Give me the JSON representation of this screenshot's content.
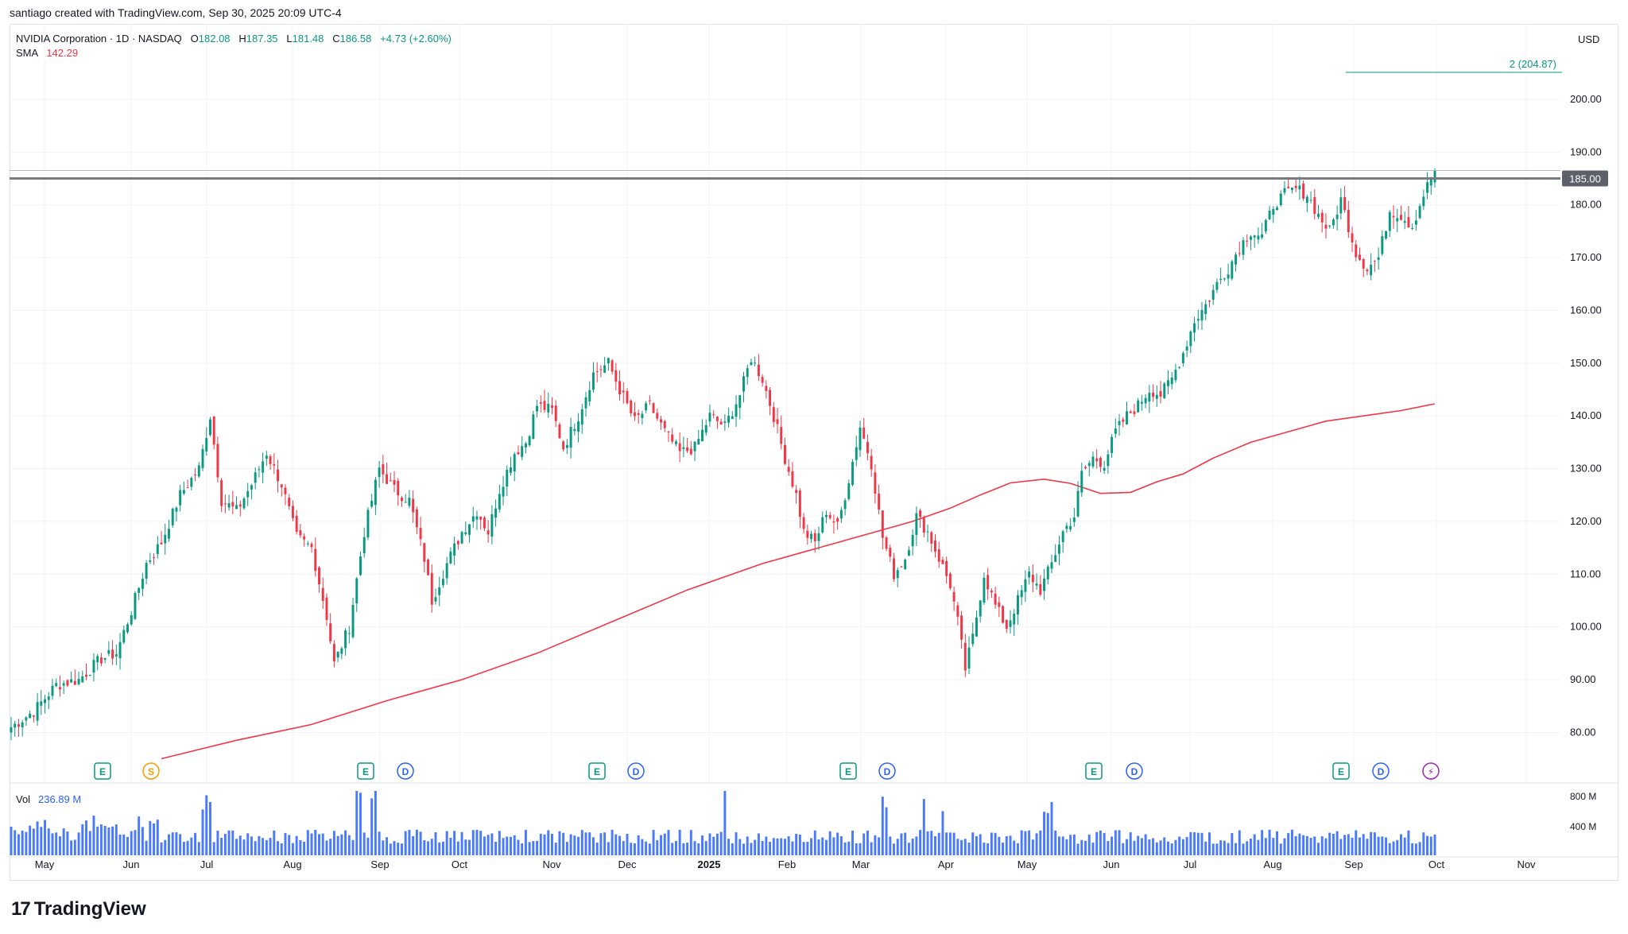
{
  "header": {
    "credit": "santiago created with TradingView.com, Sep 30, 2025 20:09 UTC-4",
    "symbol": "NVIDIA Corporation · 1D · NASDAQ",
    "ohlc": {
      "o_label": "O",
      "o": "182.08",
      "h_label": "H",
      "h": "187.35",
      "l_label": "L",
      "l": "181.48",
      "c_label": "C",
      "c": "186.58",
      "change": "+4.73 (+2.60%)"
    },
    "sma_label": "SMA",
    "sma_value": "142.29",
    "currency": "USD"
  },
  "brand": {
    "name": "TradingView",
    "logo_glyph": "17"
  },
  "colors": {
    "up": "#089981",
    "down": "#f23645",
    "sma": "#f23645",
    "volume": "#2962ff",
    "hline": "#787b86",
    "price_tag_bg": "#5d606b"
  },
  "chart_data": {
    "type": "candlestick",
    "y_axis": {
      "ticks": [
        "80.00",
        "90.00",
        "100.00",
        "110.00",
        "120.00",
        "130.00",
        "140.00",
        "150.00",
        "160.00",
        "170.00",
        "180.00",
        "190.00",
        "200.00"
      ],
      "range": [
        75,
        212
      ]
    },
    "x_axis": {
      "labels": [
        "May",
        "Jun",
        "Jul",
        "Aug",
        "Sep",
        "Oct",
        "Nov",
        "Dec",
        "2025",
        "Feb",
        "Mar",
        "Apr",
        "May",
        "Jun",
        "Jul",
        "Aug",
        "Sep",
        "Oct",
        "Nov"
      ]
    },
    "horizontal_line": {
      "value": 185.0,
      "label": "185.00"
    },
    "target_line": {
      "value": 204.87,
      "label": "2 (204.87)"
    },
    "events": [
      "E",
      "S",
      "E",
      "D",
      "E",
      "D",
      "E",
      "D",
      "E",
      "D",
      "E",
      "D",
      "⚡"
    ],
    "volume": {
      "ticks": [
        "800 M",
        "400 M"
      ],
      "label": "Vol",
      "last": "236.89 M"
    },
    "anchors": [
      [
        0,
        81
      ],
      [
        6,
        84
      ],
      [
        12,
        89
      ],
      [
        18,
        90
      ],
      [
        24,
        94
      ],
      [
        28,
        95
      ],
      [
        32,
        103
      ],
      [
        36,
        112
      ],
      [
        40,
        116
      ],
      [
        45,
        125
      ],
      [
        50,
        130
      ],
      [
        53,
        140
      ],
      [
        56,
        124
      ],
      [
        60,
        122
      ],
      [
        64,
        127
      ],
      [
        68,
        133
      ],
      [
        72,
        127
      ],
      [
        76,
        117
      ],
      [
        80,
        115
      ],
      [
        84,
        102
      ],
      [
        86,
        93
      ],
      [
        90,
        100
      ],
      [
        94,
        118
      ],
      [
        98,
        130
      ],
      [
        102,
        126
      ],
      [
        106,
        124
      ],
      [
        110,
        113
      ],
      [
        112,
        105
      ],
      [
        116,
        112
      ],
      [
        120,
        118
      ],
      [
        124,
        122
      ],
      [
        127,
        118
      ],
      [
        130,
        126
      ],
      [
        134,
        133
      ],
      [
        137,
        135
      ],
      [
        140,
        142
      ],
      [
        144,
        141
      ],
      [
        147,
        134
      ],
      [
        151,
        140
      ],
      [
        155,
        148
      ],
      [
        159,
        150
      ],
      [
        162,
        145
      ],
      [
        166,
        139
      ],
      [
        170,
        142
      ],
      [
        174,
        137
      ],
      [
        178,
        133
      ],
      [
        182,
        134
      ],
      [
        186,
        140
      ],
      [
        190,
        138
      ],
      [
        194,
        144
      ],
      [
        197,
        151
      ],
      [
        200,
        147
      ],
      [
        203,
        140
      ],
      [
        206,
        132
      ],
      [
        209,
        125
      ],
      [
        211,
        118
      ],
      [
        214,
        116
      ],
      [
        217,
        122
      ],
      [
        220,
        119
      ],
      [
        223,
        128
      ],
      [
        226,
        138
      ],
      [
        229,
        131
      ],
      [
        232,
        117
      ],
      [
        235,
        110
      ],
      [
        238,
        113
      ],
      [
        241,
        121
      ],
      [
        244,
        118
      ],
      [
        247,
        113
      ],
      [
        250,
        108
      ],
      [
        252,
        101
      ],
      [
        254,
        92
      ],
      [
        256,
        98
      ],
      [
        259,
        110
      ],
      [
        262,
        104
      ],
      [
        265,
        100
      ],
      [
        268,
        105
      ],
      [
        271,
        110
      ],
      [
        274,
        107
      ],
      [
        277,
        112
      ],
      [
        280,
        118
      ],
      [
        283,
        121
      ],
      [
        285,
        129
      ],
      [
        288,
        132
      ],
      [
        291,
        131
      ],
      [
        294,
        137
      ],
      [
        297,
        140
      ],
      [
        300,
        142
      ],
      [
        303,
        145
      ],
      [
        306,
        144
      ],
      [
        309,
        147
      ],
      [
        312,
        152
      ],
      [
        315,
        158
      ],
      [
        318,
        161
      ],
      [
        321,
        165
      ],
      [
        324,
        168
      ],
      [
        327,
        172
      ],
      [
        330,
        175
      ],
      [
        333,
        174
      ],
      [
        336,
        180
      ],
      [
        339,
        182
      ],
      [
        342,
        183
      ],
      [
        345,
        182
      ],
      [
        348,
        178
      ],
      [
        351,
        175
      ],
      [
        354,
        181
      ],
      [
        356,
        176
      ],
      [
        358,
        171
      ],
      [
        361,
        168
      ],
      [
        364,
        170
      ],
      [
        367,
        179
      ],
      [
        370,
        178
      ],
      [
        373,
        176
      ],
      [
        376,
        182
      ],
      [
        379,
        186.58
      ]
    ],
    "sma_points": [
      [
        40,
        75
      ],
      [
        60,
        78.5
      ],
      [
        80,
        81.5
      ],
      [
        100,
        86
      ],
      [
        120,
        90
      ],
      [
        140,
        95
      ],
      [
        160,
        101
      ],
      [
        180,
        107
      ],
      [
        200,
        112
      ],
      [
        220,
        116
      ],
      [
        240,
        120
      ],
      [
        250,
        122.5
      ],
      [
        258,
        125
      ],
      [
        266,
        127.3
      ],
      [
        275,
        128
      ],
      [
        282,
        127.2
      ],
      [
        290,
        125.3
      ],
      [
        298,
        125.5
      ],
      [
        305,
        127.5
      ],
      [
        312,
        129
      ],
      [
        320,
        132
      ],
      [
        330,
        135
      ],
      [
        340,
        137
      ],
      [
        350,
        139
      ],
      [
        360,
        140
      ],
      [
        370,
        141
      ],
      [
        379,
        142.29
      ]
    ]
  }
}
